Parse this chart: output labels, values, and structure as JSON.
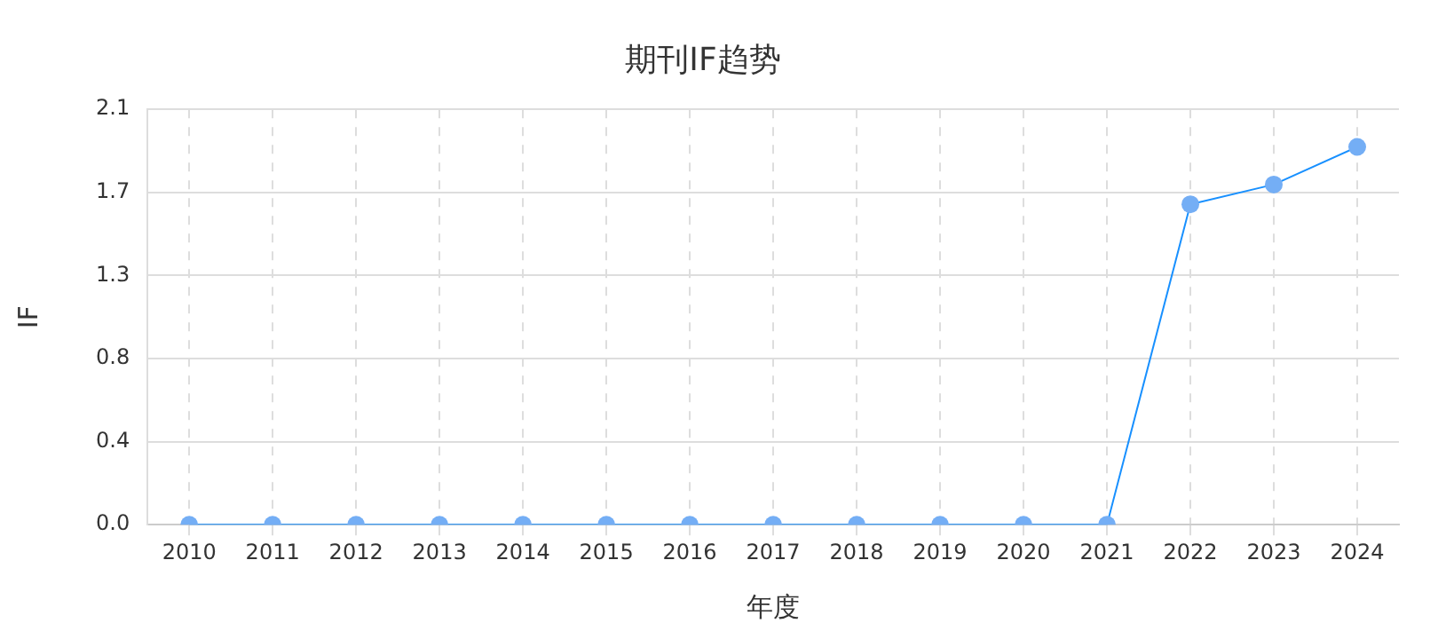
{
  "chart_data": {
    "type": "line",
    "title": "期刊IF趋势",
    "xlabel": "年度",
    "ylabel": "IF",
    "categories": [
      "2010",
      "2011",
      "2012",
      "2013",
      "2014",
      "2015",
      "2016",
      "2017",
      "2018",
      "2019",
      "2020",
      "2021",
      "2022",
      "2023",
      "2024"
    ],
    "series": [
      {
        "color": "#1890ff",
        "values": [
          0,
          0,
          0,
          0,
          0,
          0,
          0,
          0,
          0,
          0,
          0,
          0,
          1.62,
          1.72,
          1.91
        ]
      }
    ],
    "ylim": [
      0,
      2.1
    ],
    "yticks": [
      {
        "value": 0,
        "label": "0.0"
      },
      {
        "value": 0.42,
        "label": "0.4"
      },
      {
        "value": 0.84,
        "label": "0.8"
      },
      {
        "value": 1.26,
        "label": "1.3"
      },
      {
        "value": 1.68,
        "label": "1.7"
      },
      {
        "value": 2.1,
        "label": "2.1"
      }
    ],
    "grid": true,
    "legend": false,
    "marker": "circle",
    "line_style": "solid"
  }
}
